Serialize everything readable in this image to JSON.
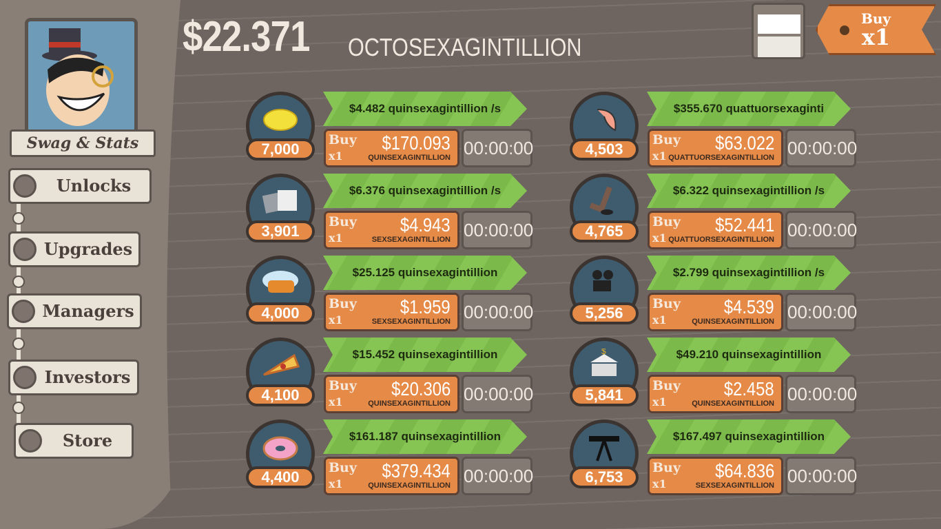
{
  "balance": {
    "amount": "$22.371",
    "unit": "OCTOSEXAGINTILLION"
  },
  "buy_multiplier": {
    "label": "Buy",
    "value": "x1"
  },
  "sidebar": {
    "profile_label": "Swag & Stats",
    "items": [
      {
        "label": "Unlocks"
      },
      {
        "label": "Upgrades"
      },
      {
        "label": "Managers"
      },
      {
        "label": "Investors"
      },
      {
        "label": "Store"
      }
    ]
  },
  "businesses": [
    {
      "icon": "lemon-icon",
      "owned": "7,000",
      "revenue": "$4.482 quinsexagintillion /s",
      "buy_label": "Buy",
      "buy_qty": "x1",
      "price": "$170.093",
      "price_unit": "QUINSEXAGINTILLION",
      "timer": "00:00:00"
    },
    {
      "icon": "newspaper-icon",
      "owned": "3,901",
      "revenue": "$6.376 quinsexagintillion /s",
      "buy_label": "Buy",
      "buy_qty": "x1",
      "price": "$4.943",
      "price_unit": "SEXSEXAGINTILLION",
      "timer": "00:00:00"
    },
    {
      "icon": "car-wash-icon",
      "owned": "4,000",
      "revenue": "$25.125 quinsexagintillion",
      "buy_label": "Buy",
      "buy_qty": "x1",
      "price": "$1.959",
      "price_unit": "SEXSEXAGINTILLION",
      "timer": "00:00:00"
    },
    {
      "icon": "pizza-icon",
      "owned": "4,100",
      "revenue": "$15.452 quinsexagintillion",
      "buy_label": "Buy",
      "buy_qty": "x1",
      "price": "$20.306",
      "price_unit": "QUINSEXAGINTILLION",
      "timer": "00:00:00"
    },
    {
      "icon": "donut-icon",
      "owned": "4,400",
      "revenue": "$161.187 quinsexagintillion",
      "buy_label": "Buy",
      "buy_qty": "x1",
      "price": "$379.434",
      "price_unit": "QUINSEXAGINTILLION",
      "timer": "00:00:00"
    },
    {
      "icon": "shrimp-icon",
      "owned": "4,503",
      "revenue": "$355.670 quattuorsexaginti",
      "buy_label": "Buy",
      "buy_qty": "x1",
      "price": "$63.022",
      "price_unit": "QUATTUORSEXAGINTILLION",
      "timer": "00:00:00"
    },
    {
      "icon": "hockey-icon",
      "owned": "4,765",
      "revenue": "$6.322 quinsexagintillion /s",
      "buy_label": "Buy",
      "buy_qty": "x1",
      "price": "$52.441",
      "price_unit": "QUATTUORSEXAGINTILLION",
      "timer": "00:00:00"
    },
    {
      "icon": "movie-camera-icon",
      "owned": "5,256",
      "revenue": "$2.799 quinsexagintillion /s",
      "buy_label": "Buy",
      "buy_qty": "x1",
      "price": "$4.539",
      "price_unit": "QUINSEXAGINTILLION",
      "timer": "00:00:00"
    },
    {
      "icon": "bank-icon",
      "owned": "5,841",
      "revenue": "$49.210 quinsexagintillion",
      "buy_label": "Buy",
      "buy_qty": "x1",
      "price": "$2.458",
      "price_unit": "QUINSEXAGINTILLION",
      "timer": "00:00:00"
    },
    {
      "icon": "oil-rig-icon",
      "owned": "6,753",
      "revenue": "$167.497 quinsexagintillion",
      "buy_label": "Buy",
      "buy_qty": "x1",
      "price": "$64.836",
      "price_unit": "SEXSEXAGINTILLION",
      "timer": "00:00:00"
    }
  ]
}
